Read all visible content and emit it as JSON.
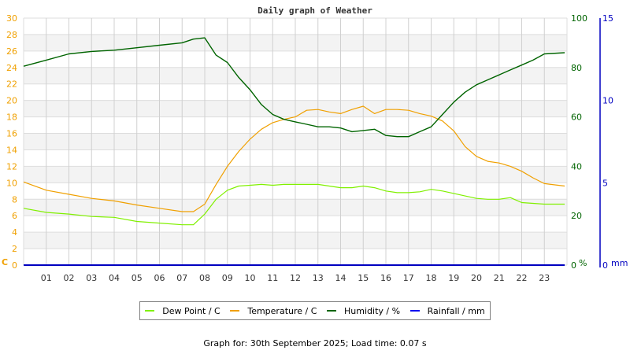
{
  "chart_data": {
    "type": "line",
    "title": "Daily graph of Weather",
    "xlabel": "",
    "x_ticks": [
      "01",
      "02",
      "03",
      "04",
      "05",
      "06",
      "07",
      "08",
      "09",
      "10",
      "11",
      "12",
      "13",
      "14",
      "15",
      "16",
      "17",
      "18",
      "19",
      "20",
      "21",
      "22",
      "23"
    ],
    "left_axis": {
      "label": "C",
      "ticks": [
        0,
        2,
        4,
        6,
        8,
        10,
        12,
        14,
        16,
        18,
        20,
        22,
        24,
        26,
        28,
        30
      ],
      "ylim": [
        0,
        30
      ],
      "color": "#f0a000"
    },
    "right_axis_1": {
      "label": "%",
      "ticks": [
        0,
        20,
        40,
        60,
        80,
        100
      ],
      "ylim": [
        0,
        100
      ],
      "color": "#006400"
    },
    "right_axis_2": {
      "label": "mm",
      "ticks": [
        0,
        5,
        10,
        15
      ],
      "ylim": [
        0,
        15
      ],
      "color": "#0000c0"
    },
    "hours": [
      0,
      1,
      2,
      3,
      4,
      5,
      6,
      7,
      7.5,
      8,
      8.5,
      9,
      9.5,
      10,
      10.5,
      11,
      11.5,
      12,
      12.5,
      13,
      13.5,
      14,
      14.5,
      15,
      15.5,
      16,
      16.5,
      17,
      17.5,
      18,
      18.5,
      19,
      19.5,
      20,
      20.5,
      21,
      21.5,
      22,
      22.5,
      23,
      23.9
    ],
    "series": [
      {
        "name": "Dew Point / C",
        "color": "#80f000",
        "axis": "left",
        "values": [
          6.9,
          6.4,
          6.2,
          5.9,
          5.8,
          5.3,
          5.1,
          4.9,
          4.9,
          6.2,
          8.0,
          9.1,
          9.6,
          9.7,
          9.8,
          9.7,
          9.8,
          9.8,
          9.8,
          9.8,
          9.6,
          9.4,
          9.4,
          9.6,
          9.4,
          9.0,
          8.8,
          8.8,
          8.9,
          9.2,
          9.0,
          8.7,
          8.4,
          8.1,
          8.0,
          8.0,
          8.2,
          7.6,
          7.5,
          7.4,
          7.4
        ]
      },
      {
        "name": "Temperature / C",
        "color": "#f0a000",
        "axis": "left",
        "values": [
          10.1,
          9.1,
          8.6,
          8.1,
          7.8,
          7.3,
          6.9,
          6.5,
          6.5,
          7.4,
          9.8,
          12.0,
          13.8,
          15.3,
          16.5,
          17.3,
          17.7,
          18.0,
          18.8,
          18.9,
          18.6,
          18.4,
          18.9,
          19.3,
          18.4,
          18.9,
          18.9,
          18.8,
          18.4,
          18.1,
          17.5,
          16.3,
          14.4,
          13.2,
          12.6,
          12.4,
          12.0,
          11.4,
          10.6,
          9.9,
          9.6
        ]
      },
      {
        "name": "Humidity / %",
        "color": "#006400",
        "axis": "right_1",
        "values": [
          80.5,
          83,
          85.5,
          86.5,
          87,
          88,
          89,
          90,
          91.5,
          92,
          85,
          82,
          76,
          71,
          65,
          61,
          59,
          58,
          57,
          56,
          56,
          55.5,
          54,
          54.5,
          55,
          52.5,
          52,
          52,
          54,
          56,
          61,
          66,
          70,
          73,
          75,
          77,
          79,
          81,
          83,
          85.5,
          86
        ]
      },
      {
        "name": "Rainfall / mm",
        "color": "#0000c0",
        "axis": "right_2",
        "values": [
          0,
          0,
          0,
          0,
          0,
          0,
          0,
          0,
          0,
          0,
          0,
          0,
          0,
          0,
          0,
          0,
          0,
          0,
          0,
          0,
          0,
          0,
          0,
          0,
          0,
          0,
          0,
          0,
          0,
          0,
          0,
          0,
          0,
          0,
          0,
          0,
          0,
          0,
          0,
          0,
          0
        ]
      }
    ],
    "grid": true,
    "legend_position": "bottom"
  },
  "legend": [
    {
      "label": "Dew Point / C",
      "color": "#80f000"
    },
    {
      "label": "Temperature / C",
      "color": "#f0a000"
    },
    {
      "label": "Humidity / %",
      "color": "#006400"
    },
    {
      "label": "Rainfall / mm",
      "color": "#0000c0"
    }
  ],
  "footer": "Graph for: 30th September 2025; Load time: 0.07 s"
}
